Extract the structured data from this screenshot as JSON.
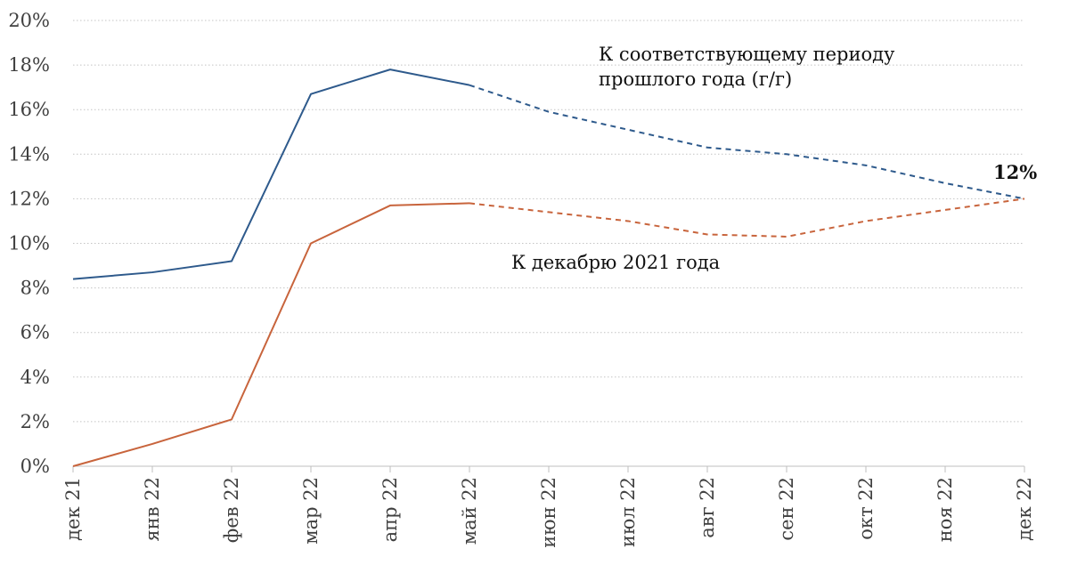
{
  "chart_data": {
    "type": "line",
    "x": [
      "дек 21",
      "янв 22",
      "фев 22",
      "мар 22",
      "апр 22",
      "май 22",
      "июн 22",
      "июл 22",
      "авг 22",
      "сен 22",
      "окт 22",
      "ноя 22",
      "дек 22"
    ],
    "ylim": [
      0,
      20
    ],
    "y_tick_values": [
      0,
      2,
      4,
      6,
      8,
      10,
      12,
      14,
      16,
      18,
      20
    ],
    "y_tick_labels": [
      "0%",
      "2%",
      "4%",
      "6%",
      "8%",
      "10%",
      "12%",
      "14%",
      "16%",
      "18%",
      "20%"
    ],
    "grid": "horizontal-dotted",
    "forecast_from_index": 5,
    "series": [
      {
        "id": "yoy",
        "name": "К соответствующему периоду прошлого года (г/г)",
        "name_lines": [
          "К соответствующему периоду",
          "прошлого года (г/г)"
        ],
        "color": "#2e5a8c",
        "values": [
          8.4,
          8.7,
          9.2,
          16.7,
          17.8,
          17.1,
          15.9,
          15.1,
          14.3,
          14.0,
          13.5,
          12.7,
          12.0
        ]
      },
      {
        "id": "ytd",
        "name": "К декабрю 2021 года",
        "name_lines": [
          "К декабрю 2021 года"
        ],
        "color": "#c8643c",
        "values": [
          0.0,
          1.0,
          2.1,
          10.0,
          11.7,
          11.8,
          11.4,
          11.0,
          10.4,
          10.3,
          11.0,
          11.5,
          12.0
        ]
      }
    ],
    "end_annotation": "12%"
  }
}
